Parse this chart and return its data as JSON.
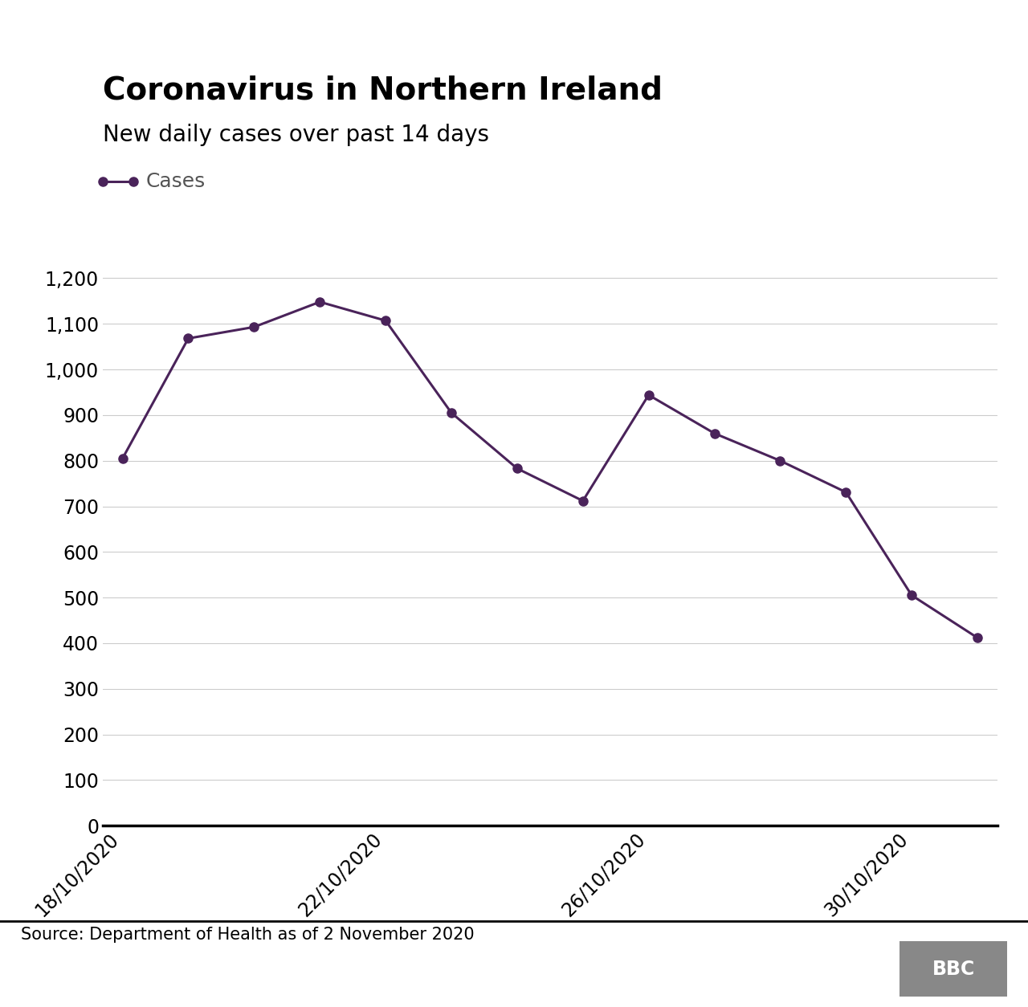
{
  "title": "Coronavirus in Northern Ireland",
  "subtitle": "New daily cases over past 14 days",
  "legend_label": "Cases",
  "source_text": "Source: Department of Health as of 2 November 2020",
  "dates": [
    "18/10/2020",
    "19/10/2020",
    "20/10/2020",
    "21/10/2020",
    "22/10/2020",
    "23/10/2020",
    "24/10/2020",
    "25/10/2020",
    "26/10/2020",
    "27/10/2020",
    "28/10/2020",
    "29/10/2020",
    "30/10/2020",
    "31/10/2020"
  ],
  "values": [
    805,
    1068,
    1093,
    1148,
    1107,
    905,
    783,
    712,
    944,
    860,
    800,
    731,
    505,
    412
  ],
  "line_color": "#4a235a",
  "marker_color": "#4a235a",
  "background_color": "#ffffff",
  "grid_color": "#cccccc",
  "yticks": [
    0,
    100,
    200,
    300,
    400,
    500,
    600,
    700,
    800,
    900,
    1000,
    1100,
    1200
  ],
  "xtick_positions": [
    0,
    4,
    8,
    12
  ],
  "xtick_labels": [
    "18/10/2020",
    "22/10/2020",
    "26/10/2020",
    "30/10/2020"
  ],
  "ylim": [
    0,
    1280
  ],
  "title_fontsize": 28,
  "subtitle_fontsize": 20,
  "tick_fontsize": 17,
  "legend_fontsize": 18,
  "source_fontsize": 15
}
